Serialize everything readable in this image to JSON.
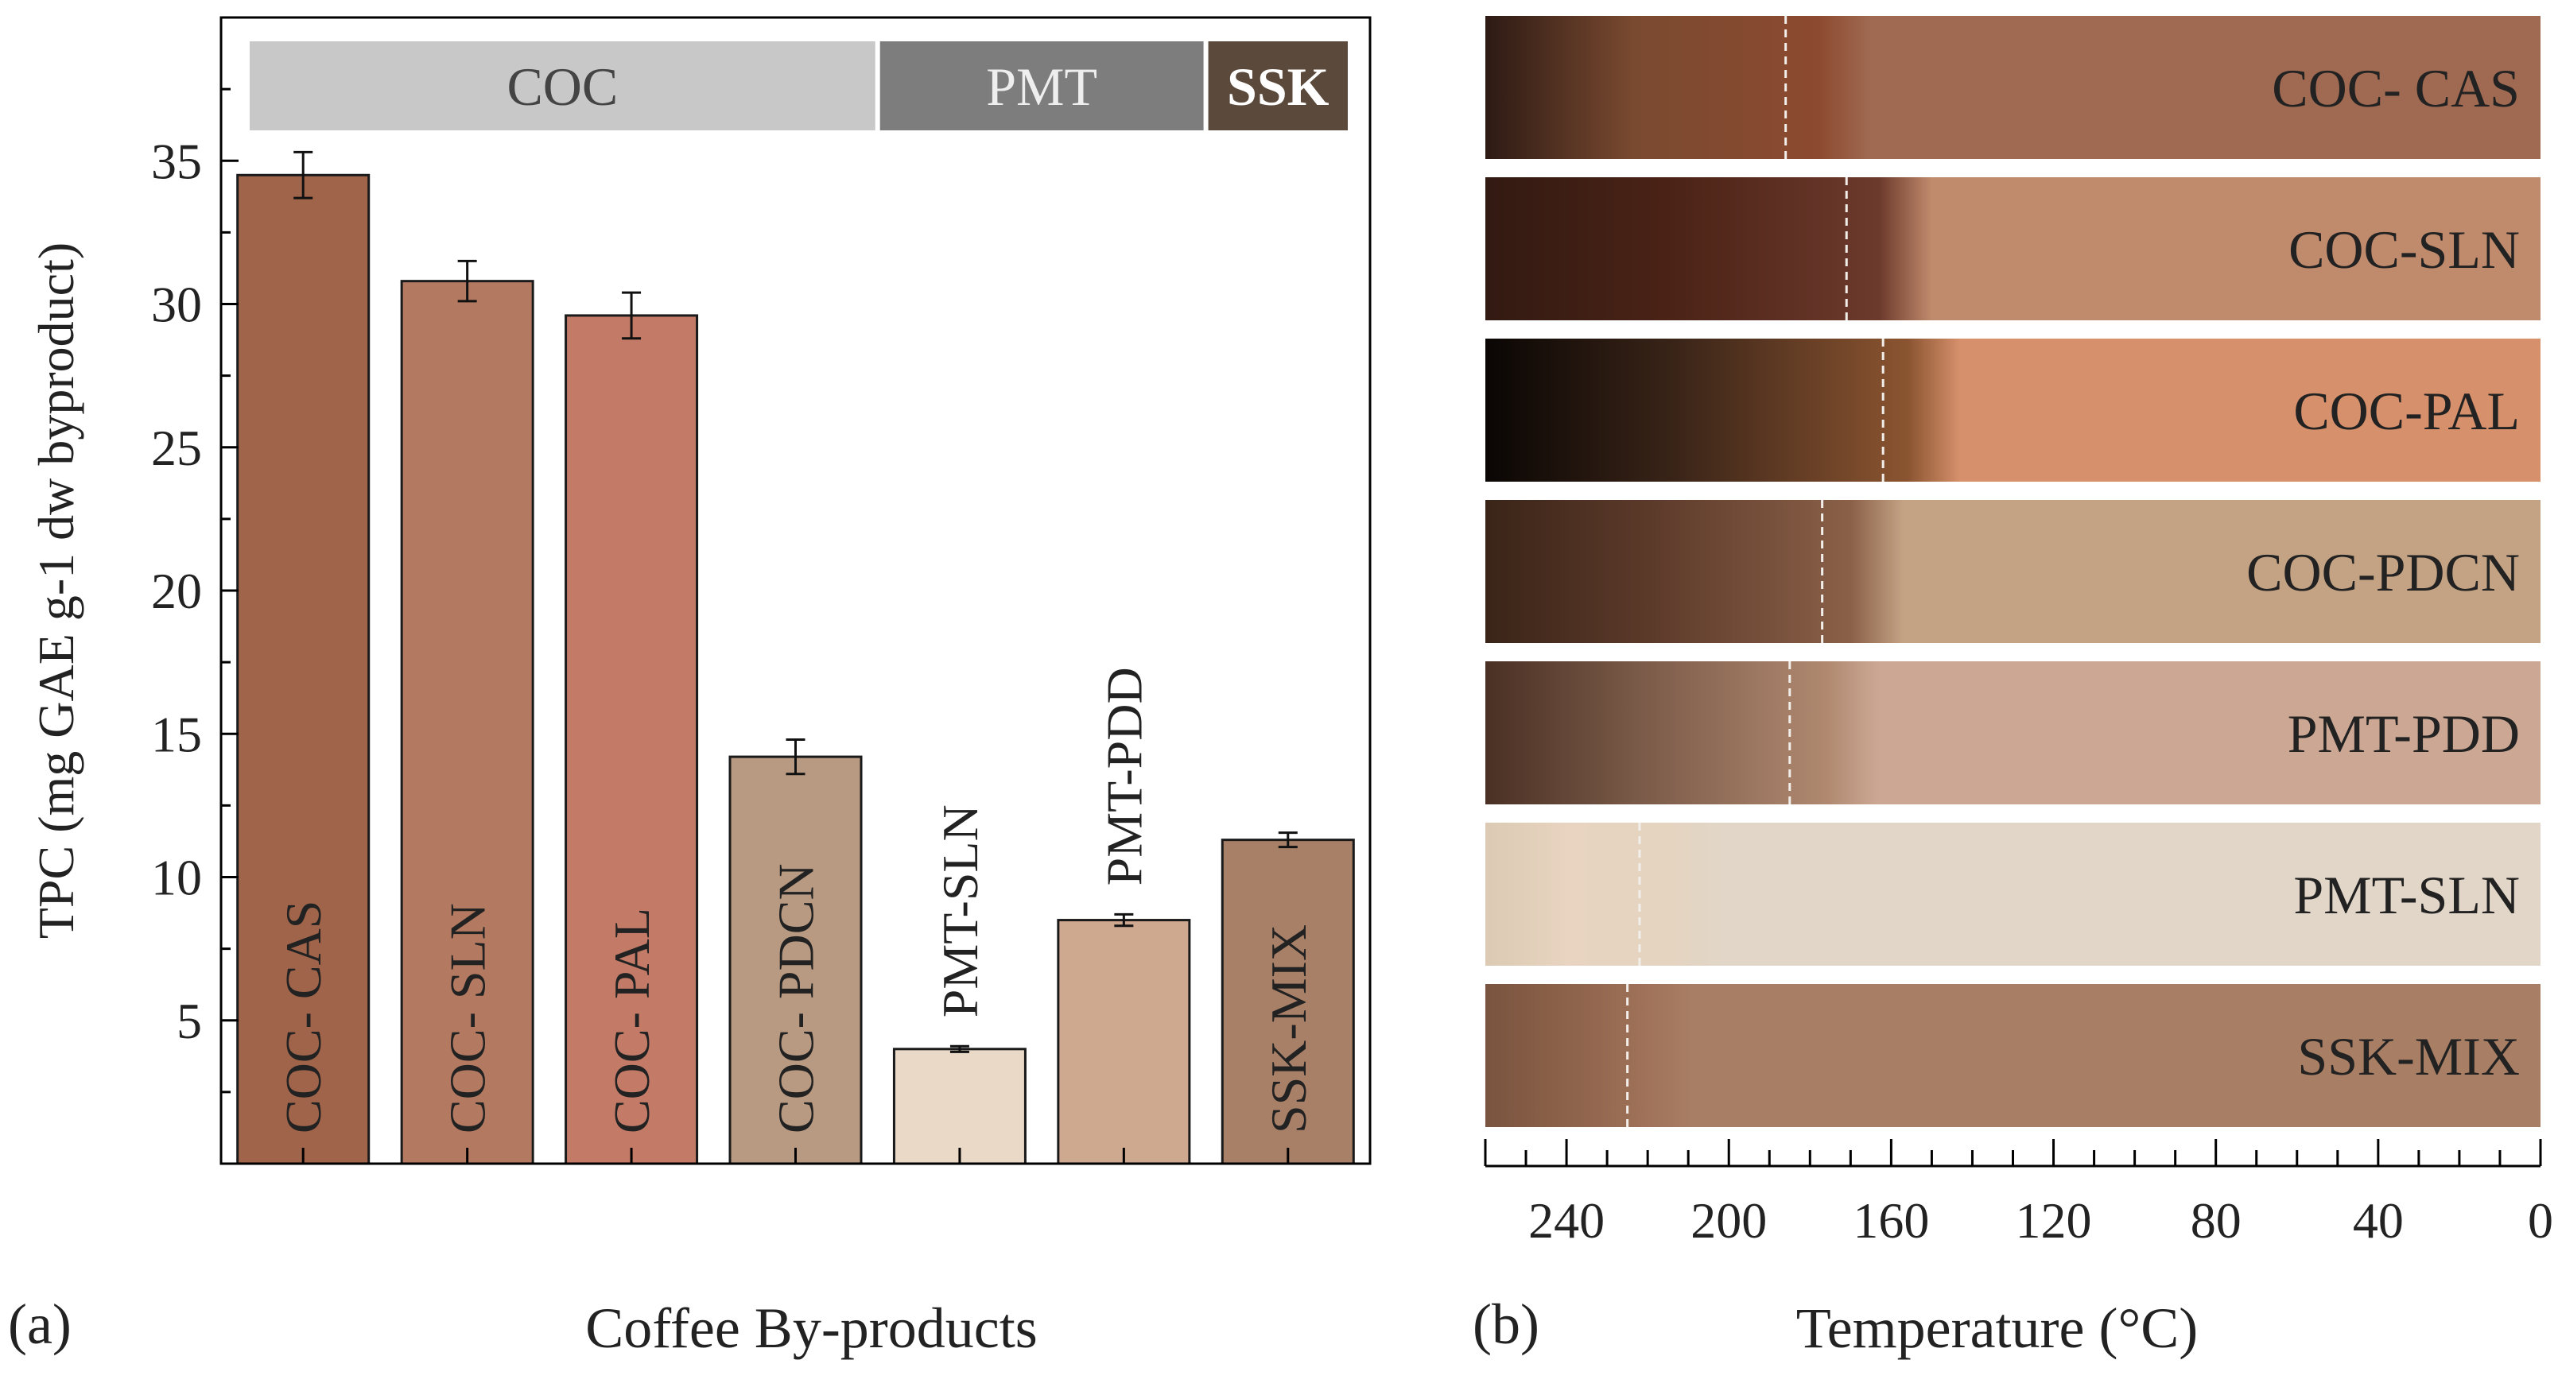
{
  "chart_data": [
    {
      "panel": "(a)",
      "type": "bar",
      "xlabel": "Coffee By-products",
      "ylabel": "TPC (mg GAE g-1 dw byproduct)",
      "ylim": [
        0,
        40
      ],
      "yticks": [
        5,
        10,
        15,
        20,
        25,
        30,
        35
      ],
      "grid": false,
      "groups": [
        {
          "label": "COC",
          "start": 0,
          "end": 3,
          "color": "#c8c8c8",
          "text_color": "#444444",
          "bold": false
        },
        {
          "label": "PMT",
          "start": 4,
          "end": 5,
          "color": "#7d7d7d",
          "text_color": "#eeeeee",
          "bold": false
        },
        {
          "label": "SSK",
          "start": 6,
          "end": 6,
          "color": "#5b4a3b",
          "text_color": "#ffffff",
          "bold": true
        }
      ],
      "bars": [
        {
          "label": "COC- CAS",
          "value": 34.5,
          "error": 0.8,
          "color": "#a0644a",
          "label_pos": "inside"
        },
        {
          "label": "COC- SLN",
          "value": 30.8,
          "error": 0.7,
          "color": "#b47a61",
          "label_pos": "inside"
        },
        {
          "label": "COC- PAL",
          "value": 29.6,
          "error": 0.8,
          "color": "#c37b68",
          "label_pos": "inside"
        },
        {
          "label": "COC- PDCN",
          "value": 14.2,
          "error": 0.6,
          "color": "#b89a82",
          "label_pos": "inside"
        },
        {
          "label": "PMT-SLN",
          "value": 4.0,
          "error": 0.1,
          "color": "#ead9c7",
          "label_pos": "above"
        },
        {
          "label": "PMT-PDD",
          "value": 8.5,
          "error": 0.2,
          "color": "#cfa890",
          "label_pos": "above"
        },
        {
          "label": "SSK-MIX",
          "value": 11.3,
          "error": 0.25,
          "color": "#a88068",
          "label_pos": "inside"
        }
      ]
    },
    {
      "panel": "(b)",
      "type": "heatmap",
      "xlabel": "Temperature (°C)",
      "xlim": [
        260,
        0
      ],
      "xticks": [
        240,
        200,
        160,
        120,
        80,
        40,
        0
      ],
      "x_minor_step": 10,
      "rows": [
        {
          "label": "COC- CAS",
          "marker": 186,
          "fade_end": 178,
          "colors": [
            "#2d1a14",
            "#7a4a30",
            "#8c4a30",
            "#a06a52"
          ]
        },
        {
          "label": "COC-SLN",
          "marker": 171,
          "fade_end": 163,
          "colors": [
            "#321a12",
            "#4a2216",
            "#6c3a2c",
            "#c08a6c"
          ]
        },
        {
          "label": "COC-PAL",
          "marker": 162,
          "fade_end": 156,
          "colors": [
            "#0a0604",
            "#3a2418",
            "#8a5430",
            "#d6906c"
          ]
        },
        {
          "label": "COC-PDCN",
          "marker": 177,
          "fade_end": 170,
          "colors": [
            "#3a2418",
            "#5c3a2a",
            "#8a6048",
            "#c4a284"
          ]
        },
        {
          "label": "PMT-PDD",
          "marker": 185,
          "fade_end": 176,
          "colors": [
            "#4a3024",
            "#7a5a48",
            "#b08870",
            "#cca894"
          ]
        },
        {
          "label": "PMT-SLN",
          "marker": 222,
          "fade_end": 214,
          "colors": [
            "#dccab4",
            "#e8d4c0",
            "#e4d4c0",
            "#e2d6c8"
          ]
        },
        {
          "label": "SSK-MIX",
          "marker": 225,
          "fade_end": 222,
          "colors": [
            "#7a5440",
            "#8a6048",
            "#9e7058",
            "#a87e64"
          ]
        }
      ]
    }
  ]
}
